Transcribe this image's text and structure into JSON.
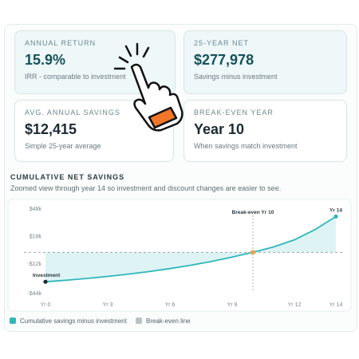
{
  "cards": [
    {
      "label": "ANNUAL RETURN",
      "value": "15.9%",
      "note": "IRR - comparable to investment"
    },
    {
      "label": "25-YEAR NET",
      "value": "$277,978",
      "note": "Savings minus investment"
    },
    {
      "label": "AVG. ANNUAL SAVINGS",
      "value": "$12,415",
      "note": "Simple 25-year average"
    },
    {
      "label": "BREAK-EVEN YEAR",
      "value": "Year 10",
      "note": "When savings match investment"
    }
  ],
  "chart_data": {
    "type": "area",
    "title": "CUMULATIVE NET SAVINGS",
    "subtitle": "Zoomed view through year 14 so investment and discount changes are easier to see.",
    "x": [
      0,
      1,
      2,
      3,
      4,
      5,
      6,
      7,
      8,
      9,
      10,
      11,
      12,
      13,
      14
    ],
    "series": [
      {
        "name": "Cumulative savings minus investment",
        "color": "#2fb7b9",
        "values": [
          -32000,
          -30300,
          -28400,
          -26200,
          -23700,
          -20900,
          -17700,
          -14100,
          -9900,
          -5200,
          0,
          5900,
          13600,
          24800,
          39000
        ]
      }
    ],
    "reference_line": {
      "name": "Break-even line",
      "value": 0,
      "color": "#b9c3c7"
    },
    "annotations": [
      {
        "text": "Investment",
        "x": 0
      },
      {
        "text": "Break-even Yr 10",
        "x": 10
      },
      {
        "text": "Yr 14",
        "x": 14
      }
    ],
    "xlim": [
      0,
      14
    ],
    "xticks": [
      {
        "value": 0,
        "label": "Yr 0"
      },
      {
        "value": 3,
        "label": "Yr 3"
      },
      {
        "value": 6,
        "label": "Yr 6"
      },
      {
        "value": 9,
        "label": "Yr 9"
      },
      {
        "value": 12,
        "label": "Yr 12"
      },
      {
        "value": 14,
        "label": "Yr 14"
      }
    ],
    "ylim": [
      -44000,
      48000
    ],
    "yticks": [
      {
        "value": 48000,
        "label": "$48k"
      },
      {
        "value": 18000,
        "label": "$18k"
      },
      {
        "value": -12000,
        "label": "-$12k"
      },
      {
        "value": -44000,
        "label": "-$44k"
      }
    ],
    "grid": false
  }
}
